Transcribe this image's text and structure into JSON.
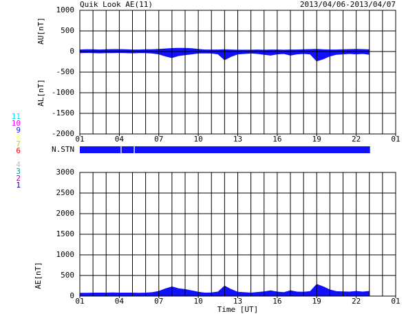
{
  "header": {
    "title": "Quik Look AE(11)",
    "date_range": "2013/04/06-2013/04/07"
  },
  "station_legend": [
    {
      "label": "11",
      "color": "#00e0ff"
    },
    {
      "label": "10",
      "color": "#ff00ff"
    },
    {
      "label": "9",
      "color": "#2020ff"
    },
    {
      "label": "8",
      "color": "#ffff80"
    },
    {
      "label": "7",
      "color": "#d0d000"
    },
    {
      "label": "6",
      "color": "#ff0000"
    },
    {
      "label": "5",
      "color": "#f0f0f0"
    },
    {
      "label": "4",
      "color": "#c0c0c0"
    },
    {
      "label": "3",
      "color": "#00a0a0"
    },
    {
      "label": "2",
      "color": "#b000b0"
    },
    {
      "label": "1",
      "color": "#0000b0"
    }
  ],
  "chart_data": [
    {
      "type": "area",
      "x": [
        0,
        0.5,
        1,
        1.5,
        2,
        2.5,
        3,
        3.5,
        4,
        4.5,
        5,
        5.5,
        6,
        6.5,
        7,
        7.5,
        8,
        8.5,
        9,
        9.5,
        10,
        10.5,
        11,
        11.5,
        12,
        12.5,
        13,
        13.5,
        14,
        14.5,
        15,
        15.5,
        16,
        16.5,
        17,
        17.5,
        18,
        18.5,
        19,
        19.5,
        20,
        20.5,
        21,
        21.5,
        22
      ],
      "series": [
        {
          "name": "AU[nT]",
          "color": "#1010ff",
          "values": [
            40,
            45,
            45,
            40,
            45,
            50,
            50,
            45,
            40,
            40,
            45,
            45,
            55,
            65,
            75,
            80,
            80,
            70,
            55,
            40,
            40,
            40,
            45,
            40,
            35,
            35,
            35,
            40,
            35,
            40,
            40,
            35,
            40,
            40,
            45,
            50,
            55,
            45,
            40,
            40,
            45,
            50,
            55,
            50,
            45
          ]
        },
        {
          "name": "AL[nT]",
          "color": "#1010ff",
          "values": [
            -30,
            -25,
            -30,
            -35,
            -30,
            -30,
            -25,
            -30,
            -35,
            -30,
            -30,
            -40,
            -60,
            -110,
            -150,
            -100,
            -80,
            -60,
            -40,
            -35,
            -40,
            -60,
            -200,
            -120,
            -60,
            -50,
            -40,
            -50,
            -70,
            -90,
            -60,
            -50,
            -90,
            -60,
            -50,
            -60,
            -230,
            -180,
            -110,
            -70,
            -60,
            -50,
            -60,
            -50,
            -70
          ]
        }
      ],
      "xlim": [
        0,
        24
      ],
      "xticks": [
        {
          "value": 0,
          "label": "01"
        },
        {
          "value": 3,
          "label": "04"
        },
        {
          "value": 6,
          "label": "07"
        },
        {
          "value": 9,
          "label": "10"
        },
        {
          "value": 12,
          "label": "13"
        },
        {
          "value": 15,
          "label": "16"
        },
        {
          "value": 18,
          "label": "19"
        },
        {
          "value": 21,
          "label": "22"
        },
        {
          "value": 24,
          "label": "01"
        }
      ],
      "xgrid_step": 1,
      "ylim": [
        -2000,
        1000
      ],
      "yticks": [
        1000,
        500,
        0,
        -500,
        -1000,
        -1500,
        -2000
      ],
      "grid": true,
      "nstn": {
        "label": "N.STN",
        "color": "#1010ff",
        "intervals": [
          [
            0,
            3.1
          ],
          [
            3.17,
            4.1
          ],
          [
            4.17,
            22.05
          ]
        ]
      }
    },
    {
      "type": "area",
      "x": [
        0,
        0.5,
        1,
        1.5,
        2,
        2.5,
        3,
        3.5,
        4,
        4.5,
        5,
        5.5,
        6,
        6.5,
        7,
        7.5,
        8,
        8.5,
        9,
        9.5,
        10,
        10.5,
        11,
        11.5,
        12,
        12.5,
        13,
        13.5,
        14,
        14.5,
        15,
        15.5,
        16,
        16.5,
        17,
        17.5,
        18,
        18.5,
        19,
        19.5,
        20,
        20.5,
        21,
        21.5,
        22
      ],
      "series": [
        {
          "name": "AE[nT]",
          "color": "#1010ff",
          "values": [
            70,
            70,
            75,
            75,
            75,
            80,
            75,
            75,
            75,
            70,
            75,
            85,
            115,
            175,
            225,
            180,
            160,
            130,
            95,
            75,
            80,
            100,
            245,
            160,
            95,
            85,
            75,
            90,
            105,
            130,
            100,
            85,
            130,
            100,
            95,
            110,
            285,
            225,
            150,
            110,
            105,
            100,
            115,
            100,
            115
          ]
        }
      ],
      "xlim": [
        0,
        24
      ],
      "xticks": [
        {
          "value": 0,
          "label": "01"
        },
        {
          "value": 3,
          "label": "04"
        },
        {
          "value": 6,
          "label": "07"
        },
        {
          "value": 9,
          "label": "10"
        },
        {
          "value": 12,
          "label": "13"
        },
        {
          "value": 15,
          "label": "16"
        },
        {
          "value": 18,
          "label": "19"
        },
        {
          "value": 21,
          "label": "22"
        },
        {
          "value": 24,
          "label": "01"
        }
      ],
      "xgrid_step": 1,
      "xlabel": "Time [UT]",
      "ylim": [
        0,
        3000
      ],
      "yticks": [
        3000,
        2500,
        2000,
        1500,
        1000,
        500,
        0
      ],
      "grid": true
    }
  ]
}
